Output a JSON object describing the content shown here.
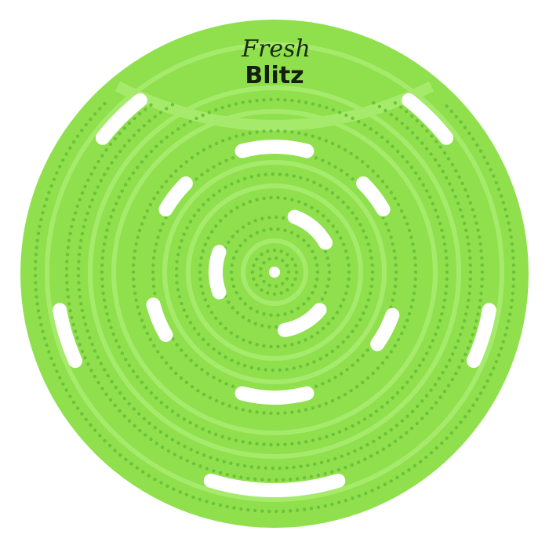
{
  "product": {
    "brand_script": "Fresh",
    "brand_bold": "Blitz",
    "colors": {
      "body": "#8fe04c",
      "ridge": "#a6ea6c",
      "dot": "#6cc23a",
      "slot": "#ffffff",
      "logo": "#16220e"
    }
  }
}
